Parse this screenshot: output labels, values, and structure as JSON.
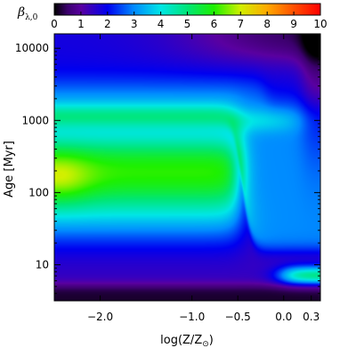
{
  "chart_data": {
    "type": "heatmap",
    "xlabel": "log(Z/Z",
    "xlabel_sub": "⊙",
    "xlabel_close": ")",
    "ylabel": "Age [Myr]",
    "colorbar_label": "β",
    "colorbar_label_sub": "λ,0",
    "x_range": [
      -2.5,
      0.4
    ],
    "y_range_log10": [
      0.5,
      4.2
    ],
    "y_scale": "log",
    "x_ticks": [
      {
        "value": -2.0,
        "label": "−2.0"
      },
      {
        "value": -1.0,
        "label": "−1.0"
      },
      {
        "value": -0.5,
        "label": "−0.5"
      },
      {
        "value": 0.0,
        "label": "0.0"
      },
      {
        "value": 0.3,
        "label": "0.3"
      }
    ],
    "y_ticks": [
      {
        "value": 10,
        "label": "10"
      },
      {
        "value": 100,
        "label": "100"
      },
      {
        "value": 1000,
        "label": "1000"
      },
      {
        "value": 10000,
        "label": "10000"
      }
    ],
    "colorbar": {
      "min": 0,
      "max": 10,
      "ticks": [
        "0",
        "1",
        "2",
        "3",
        "4",
        "5",
        "6",
        "7",
        "8",
        "9",
        "10"
      ],
      "colormap": "rainbow"
    },
    "field_notes": "approximate smooth field of beta over log(Z) and log(age)"
  }
}
